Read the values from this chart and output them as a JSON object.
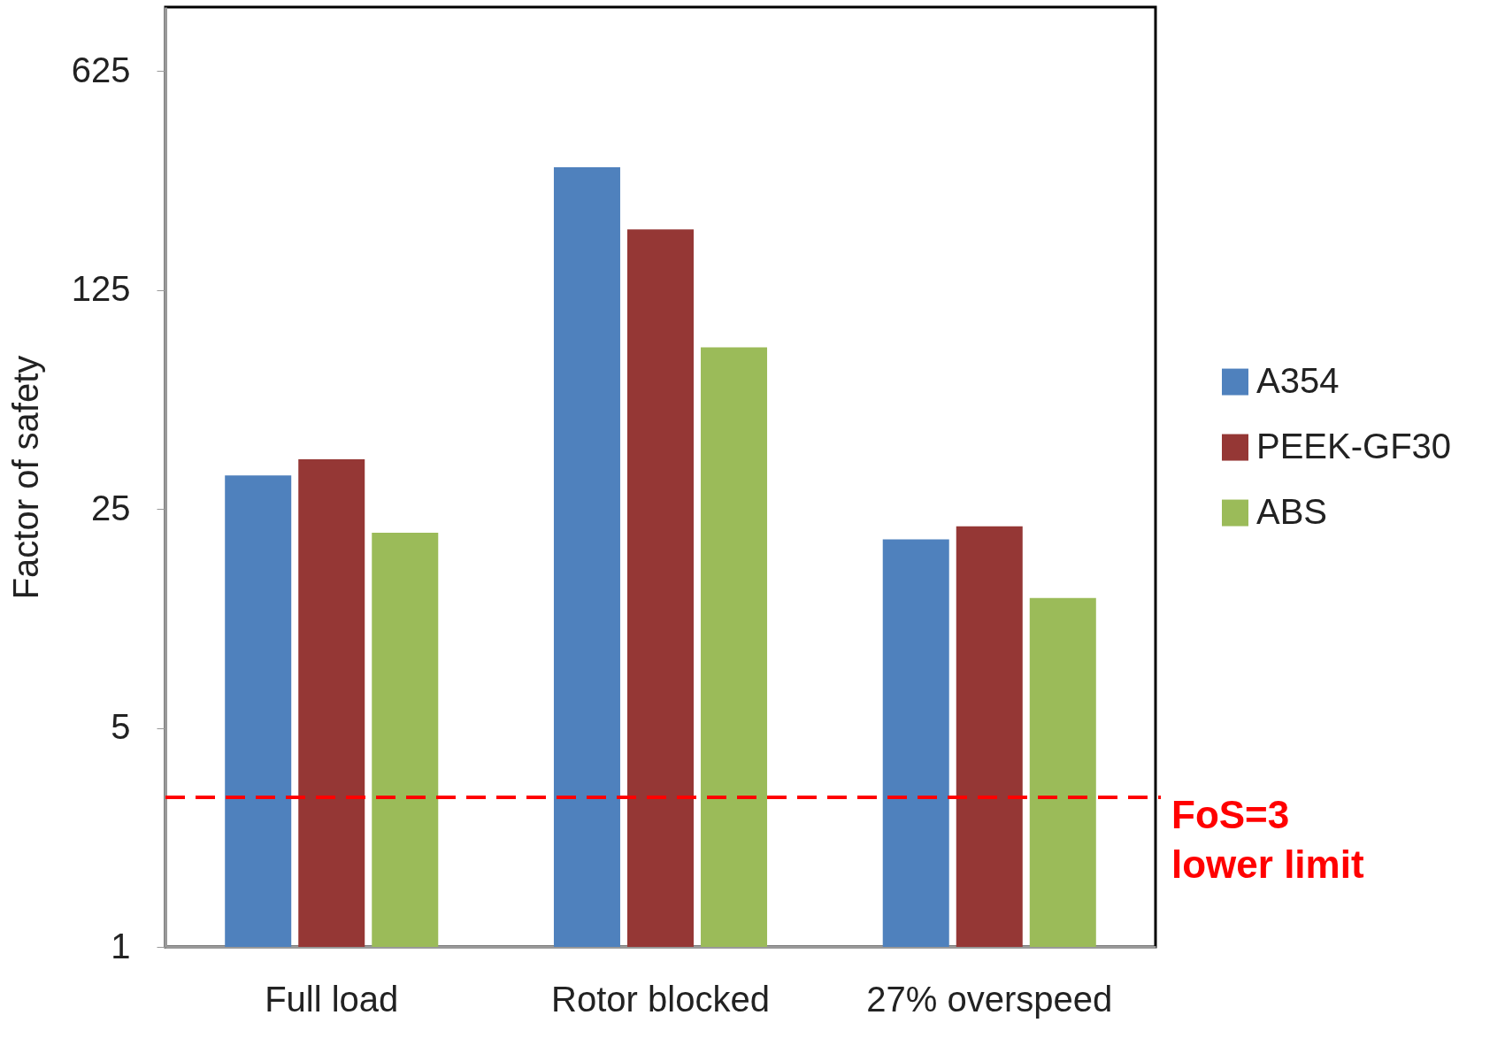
{
  "chart_data": {
    "type": "bar",
    "ylabel": "Factor of safety",
    "categories": [
      "Full load",
      "Rotor blocked",
      "27% overspeed"
    ],
    "series": [
      {
        "name": "A354",
        "color": "#4f81bd",
        "values": [
          32,
          308,
          20
        ]
      },
      {
        "name": "PEEK-GF30",
        "color": "#953735",
        "values": [
          36,
          195,
          22
        ]
      },
      {
        "name": "ABS",
        "color": "#9bbb59",
        "values": [
          21,
          82,
          13
        ]
      }
    ],
    "log": true,
    "ylim": [
      1,
      1000
    ],
    "yticks": [
      1,
      5,
      25,
      125,
      625
    ],
    "grid": false,
    "legend": "right",
    "ref_lines": [
      {
        "axis": "y",
        "value": 3,
        "label": "FoS=3\nlower limit",
        "color": "#ff0000",
        "line_style": "dashed"
      }
    ]
  }
}
